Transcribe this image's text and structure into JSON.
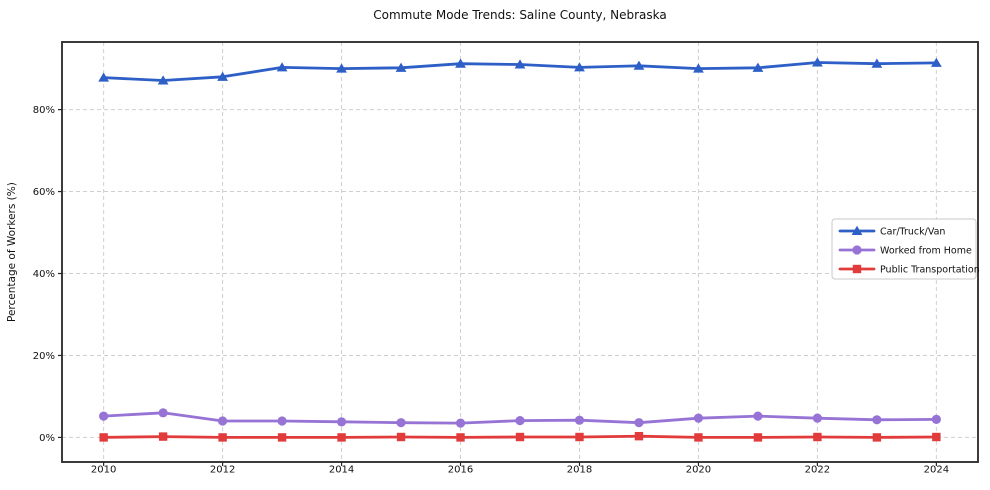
{
  "title": "Commute Mode Trends: Saline County, Nebraska",
  "y_axis_label": "Percentage of Workers (%)",
  "colors": {
    "car_truck_van": "#2e5fc7",
    "worked_from_home": "#9673d4",
    "public_transportation": "#e23b3b",
    "grid": "#cfcfcf",
    "spine": "#262626",
    "legend_border": "#c9c9c9",
    "text": "#111111"
  },
  "legend": {
    "entries": [
      "Car/Truck/Van",
      "Worked from Home",
      "Public Transportation"
    ]
  },
  "chart_data": {
    "type": "line",
    "title": "Commute Mode Trends: Saline County, Nebraska",
    "xlabel": "",
    "ylabel": "Percentage of Workers (%)",
    "x": [
      2010,
      2011,
      2012,
      2013,
      2014,
      2015,
      2016,
      2017,
      2018,
      2019,
      2020,
      2021,
      2022,
      2023,
      2024
    ],
    "xlim": [
      2009.3,
      2024.7
    ],
    "ylim": [
      -6,
      96.5
    ],
    "x_ticks": [
      2010,
      2012,
      2014,
      2016,
      2018,
      2020,
      2022,
      2024
    ],
    "x_tick_labels": [
      "2010",
      "2012",
      "2014",
      "2016",
      "2018",
      "2020",
      "2022",
      "2024"
    ],
    "y_ticks": [
      0,
      20,
      40,
      60,
      80
    ],
    "y_tick_labels": [
      "0%",
      "20%",
      "40%",
      "60%",
      "80%"
    ],
    "grid": true,
    "legend_position": "center right",
    "series": [
      {
        "name": "Car/Truck/Van",
        "marker": "triangle",
        "color": "#2e5fc7",
        "values": [
          87.8,
          87.1,
          88.0,
          90.3,
          90.0,
          90.2,
          91.2,
          91.0,
          90.3,
          90.7,
          90.0,
          90.2,
          91.5,
          91.2,
          91.4
        ]
      },
      {
        "name": "Worked from Home",
        "marker": "circle",
        "color": "#9673d4",
        "values": [
          5.2,
          6.0,
          4.0,
          4.0,
          3.8,
          3.6,
          3.5,
          4.1,
          4.2,
          3.6,
          4.7,
          5.2,
          4.7,
          4.3,
          4.4
        ]
      },
      {
        "name": "Public Transportation",
        "marker": "square",
        "color": "#e23b3b",
        "values": [
          0.0,
          0.2,
          0.0,
          0.0,
          0.0,
          0.1,
          0.0,
          0.1,
          0.1,
          0.3,
          0.0,
          0.0,
          0.1,
          0.0,
          0.1
        ]
      }
    ]
  }
}
